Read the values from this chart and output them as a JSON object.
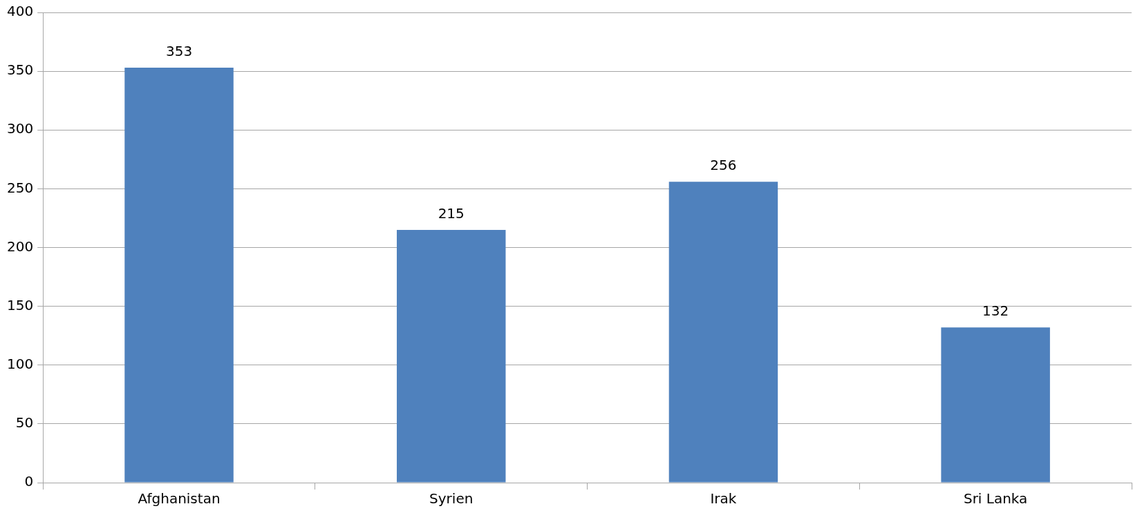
{
  "chart_data": {
    "type": "bar",
    "categories": [
      "Afghanistan",
      "Syrien",
      "Irak",
      "Sri Lanka"
    ],
    "values": [
      353,
      215,
      256,
      132
    ],
    "color": "#4f81bd",
    "ylim": [
      0,
      400
    ],
    "yticks": [
      0,
      50,
      100,
      150,
      200,
      250,
      300,
      350,
      400
    ],
    "grid": "y",
    "legend": false,
    "data_labels": true
  }
}
